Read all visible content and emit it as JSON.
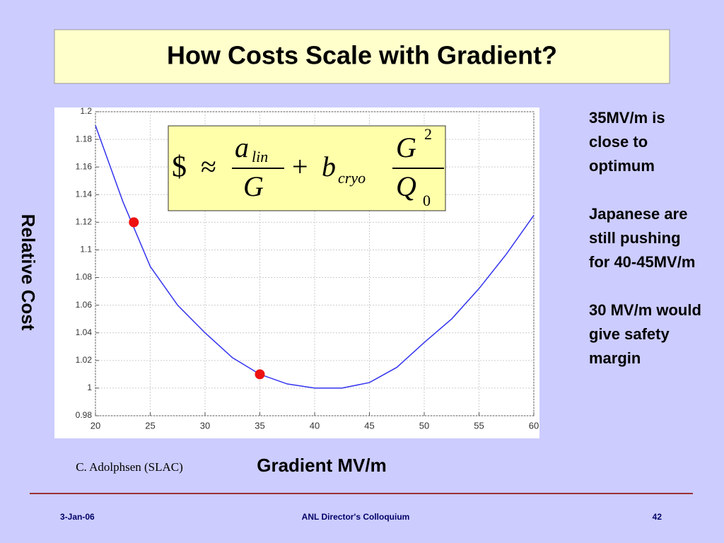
{
  "title": "How Costs Scale with Gradient?",
  "chart_data": {
    "type": "line",
    "x_label": "Gradient MV/m",
    "y_label": "Relative Cost",
    "x": [
      20,
      22.5,
      25,
      27.5,
      30,
      32.5,
      35,
      37.5,
      40,
      42.5,
      45,
      47.5,
      50,
      52.5,
      55,
      57.5,
      60
    ],
    "values": [
      1.19,
      1.135,
      1.088,
      1.06,
      1.04,
      1.022,
      1.01,
      1.003,
      1.0,
      1.0,
      1.004,
      1.015,
      1.033,
      1.05,
      1.072,
      1.097,
      1.125
    ],
    "color": "#3333ee",
    "points": {
      "x": [
        23.5,
        35
      ],
      "values": [
        1.12,
        1.01
      ],
      "color": "#ee1111"
    },
    "xlim": [
      20,
      60
    ],
    "xticks": [
      20,
      25,
      30,
      35,
      40,
      45,
      50,
      55,
      60
    ],
    "ylim": [
      0.98,
      1.2
    ],
    "yticks": [
      0.98,
      1,
      1.02,
      1.04,
      1.06,
      1.08,
      1.1,
      1.12,
      1.14,
      1.16,
      1.18,
      1.2
    ],
    "grid": true
  },
  "formula": {
    "dollar": "$",
    "approx": "≈",
    "a": "a",
    "lin": "lin",
    "g1": "G",
    "plus": "+",
    "b": "b",
    "cryo": "cryo",
    "g2": "G",
    "sq": "2",
    "q": "Q",
    "zero": "0"
  },
  "credit": "C. Adolphsen (SLAC)",
  "notes": [
    "35MV/m is close to optimum",
    "Japanese are still pushing for 40-45MV/m",
    "30 MV/m would give safety margin"
  ],
  "footer": {
    "date": "3-Jan-06",
    "center": "ANL Director's Colloquium",
    "page": "42"
  }
}
